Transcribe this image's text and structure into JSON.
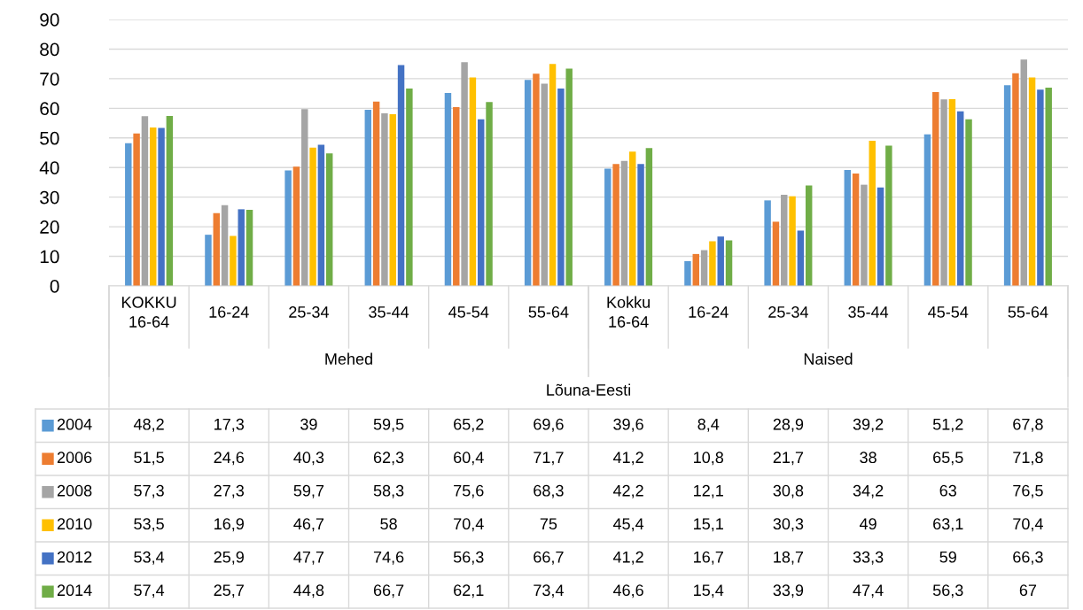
{
  "chart_data": {
    "type": "bar",
    "categories": [
      "KOKKU\n16-64",
      "16-24",
      "25-34",
      "35-44",
      "45-54",
      "55-64",
      "Kokku\n16-64",
      "16-24",
      "25-34",
      "35-44",
      "45-54",
      "55-64"
    ],
    "annotations": [
      "Mehed",
      "Naised",
      "Lõuna-Eesti"
    ],
    "series": [
      {
        "name": "2004",
        "color": "#5b9bd5",
        "values": [
          48.2,
          17.3,
          39,
          59.5,
          65.2,
          69.6,
          39.6,
          8.4,
          28.9,
          39.2,
          51.2,
          67.8
        ],
        "value_labels": [
          "48,2",
          "17,3",
          "39",
          "59,5",
          "65,2",
          "69,6",
          "39,6",
          "8,4",
          "28,9",
          "39,2",
          "51,2",
          "67,8"
        ]
      },
      {
        "name": "2006",
        "color": "#ed7d31",
        "values": [
          51.5,
          24.6,
          40.3,
          62.3,
          60.4,
          71.7,
          41.2,
          10.8,
          21.7,
          38,
          65.5,
          71.8
        ],
        "value_labels": [
          "51,5",
          "24,6",
          "40,3",
          "62,3",
          "60,4",
          "71,7",
          "41,2",
          "10,8",
          "21,7",
          "38",
          "65,5",
          "71,8"
        ]
      },
      {
        "name": "2008",
        "color": "#a5a5a5",
        "values": [
          57.3,
          27.3,
          59.7,
          58.3,
          75.6,
          68.3,
          42.2,
          12.1,
          30.8,
          34.2,
          63,
          76.5
        ],
        "value_labels": [
          "57,3",
          "27,3",
          "59,7",
          "58,3",
          "75,6",
          "68,3",
          "42,2",
          "12,1",
          "30,8",
          "34,2",
          "63",
          "76,5"
        ]
      },
      {
        "name": "2010",
        "color": "#ffc000",
        "values": [
          53.5,
          16.9,
          46.7,
          58,
          70.4,
          75,
          45.4,
          15.1,
          30.3,
          49,
          63.1,
          70.4
        ],
        "value_labels": [
          "53,5",
          "16,9",
          "46,7",
          "58",
          "70,4",
          "75",
          "45,4",
          "15,1",
          "30,3",
          "49",
          "63,1",
          "70,4"
        ]
      },
      {
        "name": "2012",
        "color": "#4472c4",
        "values": [
          53.4,
          25.9,
          47.7,
          74.6,
          56.3,
          66.7,
          41.2,
          16.7,
          18.7,
          33.3,
          59,
          66.3
        ],
        "value_labels": [
          "53,4",
          "25,9",
          "47,7",
          "74,6",
          "56,3",
          "66,7",
          "41,2",
          "16,7",
          "18,7",
          "33,3",
          "59",
          "66,3"
        ]
      },
      {
        "name": "2014",
        "color": "#70ad47",
        "values": [
          57.4,
          25.7,
          44.8,
          66.7,
          62.1,
          73.4,
          46.6,
          15.4,
          33.9,
          47.4,
          56.3,
          67
        ],
        "value_labels": [
          "57,4",
          "25,7",
          "44,8",
          "66,7",
          "62,1",
          "73,4",
          "46,6",
          "15,4",
          "33,9",
          "47,4",
          "56,3",
          "67"
        ]
      }
    ],
    "ylim": [
      0,
      90
    ],
    "yticks": [
      0,
      10,
      20,
      30,
      40,
      50,
      60,
      70,
      80,
      90
    ],
    "grid": "y",
    "legend": "bottom"
  }
}
